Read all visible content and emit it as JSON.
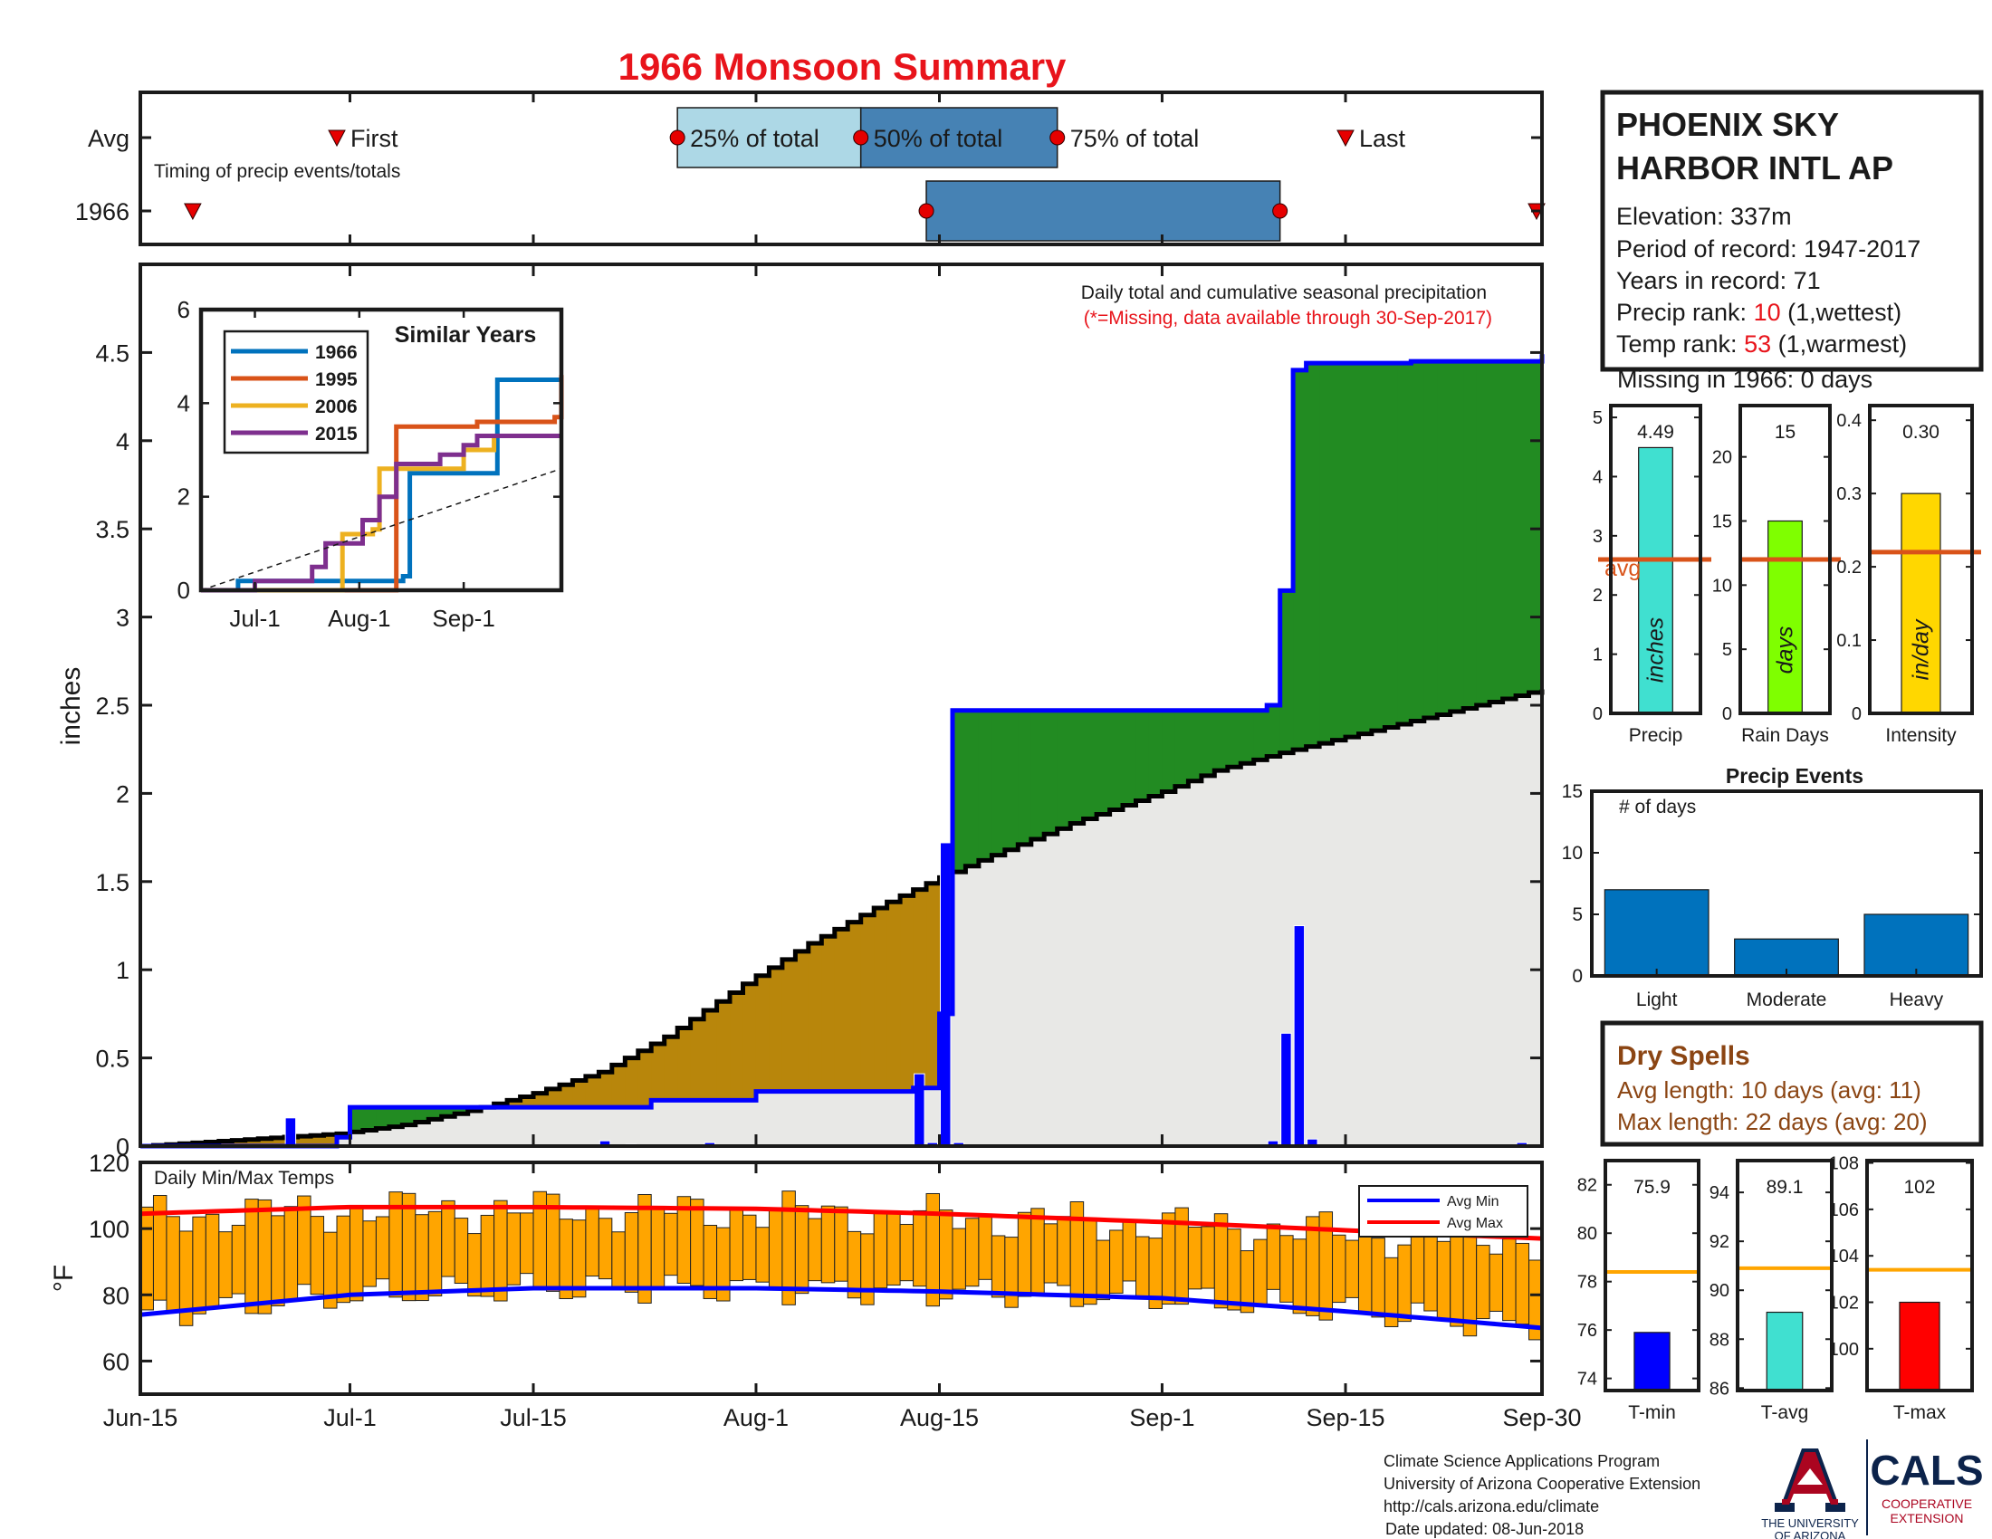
{
  "title": "1966 Monsoon Summary",
  "colors": {
    "title": "#e8141b",
    "light_blue": "#add8e6",
    "steel_blue": "#4682b4",
    "green": "#228b22",
    "brown": "#b8860b",
    "gray_fill": "#e8e8e6",
    "blue_line": "#0000ff",
    "orange": "#ffa500",
    "red": "#ff0000",
    "marker_red": "#e60000",
    "dry_brown": "#8b4513",
    "teal": "#40e0d0",
    "lime": "#7fff00",
    "gold": "#ffd700",
    "avg_line": "#d95319",
    "event_blue": "#0072bd",
    "ua_red": "#ab0520",
    "ua_navy": "#0c234b"
  },
  "timing": {
    "avg_label": "Avg",
    "year_label": "1966",
    "subtitle": "Timing of precip events/totals",
    "first_label": "First",
    "p25_label": "25% of total",
    "p50_label": "50% of total",
    "p75_label": "75% of total",
    "last_label": "Last",
    "avg_first": "2000-06-30",
    "avg_p25": "2000-07-26",
    "avg_p50": "2000-08-09",
    "avg_p75": "2000-08-24",
    "avg_last": "2000-09-15",
    "year_first": "2000-06-19",
    "year_p25": "2000-08-14",
    "year_p75": "2000-09-10",
    "year_last": "2000-09-30"
  },
  "station": {
    "name_line1": "PHOENIX SKY",
    "name_line2": "HARBOR INTL AP",
    "elevation": "Elevation: 337m",
    "period": "Period of record: 1947-2017",
    "years": "Years in record: 71",
    "precip_rank_label": "Precip rank: ",
    "precip_rank": "10",
    "precip_rank_note": " (1,wettest)",
    "temp_rank_label": "Temp rank: ",
    "temp_rank": "53",
    "temp_rank_note": " (1,warmest)",
    "missing": "Missing in 1966: 0 days"
  },
  "precip_panel": {
    "ylabel": "inches",
    "note_line1": "Daily total and cumulative seasonal precipitation",
    "note_line2": "(*=Missing, data available through 30-Sep-2017)",
    "ylim": [
      0,
      5
    ],
    "yticks": [
      "0",
      "0.5",
      "1",
      "1.5",
      "2",
      "2.5",
      "3",
      "3.5",
      "4",
      "4.5"
    ],
    "xticks": [
      "Jun-15",
      "Jul-1",
      "Jul-15",
      "Aug-1",
      "Aug-15",
      "Sep-1",
      "Sep-15",
      "Sep-30"
    ]
  },
  "temp_panel": {
    "label": "Daily Min/Max Temps",
    "ylabel": "°F",
    "ylim": [
      50,
      120
    ],
    "yticks": [
      "60",
      "80",
      "100",
      "120"
    ],
    "legend_min": "Avg Min",
    "legend_max": "Avg Max"
  },
  "similar_years": {
    "title": "Similar Years",
    "yticks": [
      "0",
      "2",
      "4",
      "6"
    ],
    "xticks": [
      "Jul-1",
      "Aug-1",
      "Sep-1"
    ],
    "series_names": [
      "1966",
      "1995",
      "2006",
      "2015"
    ],
    "series_colors": [
      "#0072bd",
      "#d95319",
      "#edb120",
      "#7e2f8e"
    ]
  },
  "bars": {
    "precip": {
      "value_label": "4.49",
      "unit": "inches",
      "xlabel": "Precip",
      "avg_label": "avg",
      "yticks": [
        "0",
        "1",
        "2",
        "3",
        "4",
        "5"
      ]
    },
    "rain_days": {
      "value_label": "15",
      "unit": "days",
      "xlabel": "Rain Days",
      "yticks": [
        "0",
        "5",
        "10",
        "15",
        "20"
      ]
    },
    "intensity": {
      "value_label": "0.30",
      "unit": "in/day",
      "xlabel": "Intensity",
      "yticks": [
        "0",
        "0.1",
        "0.2",
        "0.3",
        "0.4"
      ]
    },
    "tmin": {
      "value_label": "75.9",
      "xlabel": "T-min",
      "yticks": [
        "74",
        "76",
        "78",
        "80",
        "82"
      ]
    },
    "tavg": {
      "value_label": "89.1",
      "xlabel": "T-avg",
      "yticks": [
        "86",
        "88",
        "90",
        "92",
        "94"
      ]
    },
    "tmax": {
      "value_label": "102",
      "xlabel": "T-max",
      "yticks": [
        "100",
        "102",
        "104",
        "106",
        "108"
      ]
    }
  },
  "events": {
    "title": "Precip Events",
    "ylabel": "# of days",
    "yticks": [
      "0",
      "5",
      "10",
      "15"
    ],
    "categories": [
      "Light",
      "Moderate",
      "Heavy"
    ]
  },
  "dry_spells": {
    "title": "Dry Spells",
    "avg_length": "Avg length: 10 days (avg: 11)",
    "max_length": "Max length: 22 days (avg: 20)"
  },
  "footer": {
    "line1": "Climate Science Applications Program",
    "line2": "University of Arizona Cooperative Extension",
    "line3": "http://cals.arizona.edu/climate",
    "line4": "Date updated: 08-Jun-2018",
    "ua_line1": "THE UNIVERSITY",
    "ua_line2": "OF ARIZONA",
    "cals": "CALS",
    "cals_sub1": "COOPERATIVE",
    "cals_sub2": "EXTENSION"
  },
  "chart_data": [
    {
      "type": "area",
      "title": "Daily total and cumulative seasonal precipitation",
      "ylabel": "inches",
      "ylim": [
        0,
        5
      ],
      "series": [
        {
          "name": "1966",
          "x": [
            "2000-06-15",
            "2000-06-30",
            "2000-07-01",
            "2000-07-15",
            "2000-07-24",
            "2000-08-01",
            "2000-08-13",
            "2000-08-15",
            "2000-08-16",
            "2000-09-09",
            "2000-09-10",
            "2000-09-11",
            "2000-09-12",
            "2000-09-20",
            "2000-09-30"
          ],
          "values": [
            0,
            0.05,
            0.22,
            0.22,
            0.26,
            0.31,
            0.33,
            0.75,
            2.47,
            2.5,
            3.15,
            4.4,
            4.44,
            4.45,
            4.49
          ]
        },
        {
          "name": "Avg",
          "x": [
            "2000-06-15",
            "2000-06-30",
            "2000-07-05",
            "2000-07-10",
            "2000-07-15",
            "2000-07-20",
            "2000-07-25",
            "2000-07-31",
            "2000-08-05",
            "2000-08-10",
            "2000-08-14",
            "2000-08-18",
            "2000-08-25",
            "2000-09-01",
            "2000-09-05",
            "2000-09-10",
            "2000-09-15",
            "2000-09-20",
            "2000-09-25",
            "2000-09-30"
          ],
          "values": [
            0,
            0.07,
            0.12,
            0.2,
            0.3,
            0.42,
            0.62,
            0.92,
            1.15,
            1.35,
            1.49,
            1.62,
            1.83,
            2.01,
            2.13,
            2.23,
            2.32,
            2.41,
            2.5,
            2.59
          ]
        }
      ],
      "daily": {
        "x": [
          "2000-06-26",
          "2000-07-20",
          "2000-07-22",
          "2000-07-28",
          "2000-08-13",
          "2000-08-14",
          "2000-08-15",
          "2000-08-16",
          "2000-09-09",
          "2000-09-10",
          "2000-09-11",
          "2000-09-12",
          "2000-09-28"
        ],
        "values": [
          0.16,
          0.03,
          0.01,
          0.02,
          0.41,
          0.02,
          1.72,
          0.02,
          0.03,
          0.64,
          1.25,
          0.04,
          0.02
        ]
      }
    },
    {
      "type": "bar",
      "title": "Daily Min/Max Temps",
      "ylabel": "°F",
      "ylim": [
        50,
        120
      ],
      "avg_max": {
        "x": [
          "2000-06-15",
          "2000-07-01",
          "2000-07-15",
          "2000-08-01",
          "2000-08-15",
          "2000-09-01",
          "2000-09-15",
          "2000-09-30"
        ],
        "values": [
          104.5,
          106.5,
          106.5,
          106,
          104.5,
          102,
          99.5,
          97
        ]
      },
      "avg_min": {
        "x": [
          "2000-06-15",
          "2000-07-01",
          "2000-07-15",
          "2000-08-01",
          "2000-08-15",
          "2000-09-01",
          "2000-09-15",
          "2000-09-30"
        ],
        "values": [
          74,
          80,
          82,
          82,
          81,
          79,
          75,
          70
        ]
      }
    },
    {
      "type": "line",
      "title": "Similar Years",
      "ylim": [
        0,
        6
      ],
      "series": [
        {
          "name": "1966",
          "x": [
            "2000-06-15",
            "2000-06-26",
            "2000-08-14",
            "2000-08-16",
            "2000-09-09",
            "2000-09-11",
            "2000-09-30"
          ],
          "values": [
            0,
            0.2,
            0.3,
            2.5,
            2.5,
            4.5,
            4.5
          ]
        },
        {
          "name": "1995",
          "x": [
            "2000-06-15",
            "2000-08-10",
            "2000-08-12",
            "2000-08-25",
            "2000-09-05",
            "2000-09-10",
            "2000-09-28",
            "2000-09-30"
          ],
          "values": [
            0,
            0,
            3.5,
            3.5,
            3.6,
            3.6,
            3.7,
            4.6
          ]
        },
        {
          "name": "2006",
          "x": [
            "2000-06-15",
            "2000-07-25",
            "2000-07-27",
            "2000-08-05",
            "2000-08-07",
            "2000-08-29",
            "2000-09-01",
            "2000-09-06",
            "2000-09-10",
            "2000-09-30"
          ],
          "values": [
            0,
            0,
            1.2,
            1.3,
            2.6,
            2.6,
            3.0,
            3.0,
            3.3,
            3.3
          ]
        },
        {
          "name": "2015",
          "x": [
            "2000-06-15",
            "2000-07-01",
            "2000-07-18",
            "2000-07-22",
            "2000-08-02",
            "2000-08-07",
            "2000-08-12",
            "2000-08-20",
            "2000-08-25",
            "2000-09-01",
            "2000-09-05",
            "2000-09-30"
          ],
          "values": [
            0,
            0.2,
            0.5,
            1.0,
            1.5,
            2.0,
            2.7,
            2.7,
            2.9,
            3.1,
            3.3,
            3.3
          ]
        },
        {
          "name": "avg",
          "x": [
            "2000-06-15",
            "2000-09-30"
          ],
          "values": [
            0,
            2.6
          ]
        }
      ]
    },
    {
      "type": "bar",
      "title": "Seasonal statistics",
      "categories": [
        "Precip",
        "Rain Days",
        "Intensity",
        "T-min",
        "T-avg",
        "T-max"
      ],
      "values": [
        4.49,
        15,
        0.3,
        75.9,
        89.1,
        102
      ],
      "averages": [
        2.6,
        12,
        0.22,
        78.4,
        90.9,
        103.4
      ],
      "ylims": [
        [
          0,
          5.2
        ],
        [
          0,
          24
        ],
        [
          0,
          0.42
        ],
        [
          73.5,
          83
        ],
        [
          85.9,
          95.3
        ],
        [
          98.2,
          108.1
        ]
      ]
    },
    {
      "type": "bar",
      "title": "Precip Events",
      "ylabel": "# of days",
      "categories": [
        "Light",
        "Moderate",
        "Heavy"
      ],
      "values": [
        7,
        3,
        5
      ],
      "ylim": [
        0,
        15
      ]
    }
  ]
}
